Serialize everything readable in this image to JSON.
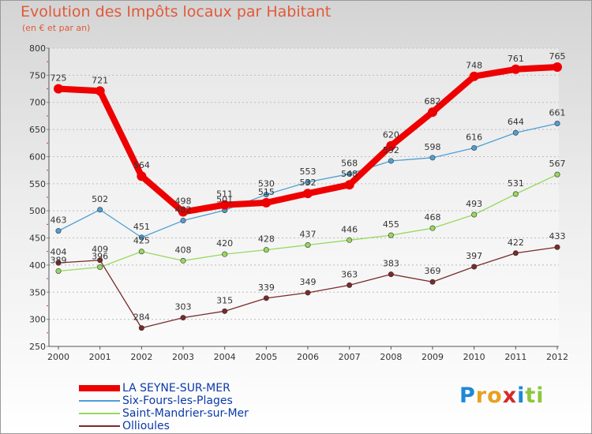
{
  "title": "Evolution des Impôts locaux par Habitant",
  "subtitle": "(en € et par an)",
  "logo": {
    "letters": [
      {
        "ch": "P",
        "color": "#1e88d8"
      },
      {
        "ch": "r",
        "color": "#e8a020"
      },
      {
        "ch": "o",
        "color": "#e8a020"
      },
      {
        "ch": "x",
        "color": "#d42a2a"
      },
      {
        "ch": "i",
        "color": "#1e88d8"
      },
      {
        "ch": "t",
        "color": "#8cc63f"
      },
      {
        "ch": "i",
        "color": "#8cc63f"
      }
    ]
  },
  "chart_data": {
    "type": "line",
    "x": [
      2000,
      2001,
      2002,
      2003,
      2004,
      2005,
      2006,
      2007,
      2008,
      2009,
      2010,
      2011,
      2012
    ],
    "ylim": [
      250,
      800
    ],
    "yticks": [
      250,
      300,
      350,
      400,
      450,
      500,
      550,
      600,
      650,
      700,
      750,
      800
    ],
    "grid": "horizontal",
    "legend_position": "bottom-left",
    "series": [
      {
        "name": "LA SEYNE-SUR-MER",
        "color": "#ee0000",
        "width": 8,
        "values": [
          725,
          721,
          564,
          498,
          511,
          515,
          532,
          548,
          620,
          682,
          748,
          761,
          765
        ]
      },
      {
        "name": "Six-Fours-les-Plages",
        "color": "#4f9fd4",
        "width": 1.3,
        "values": [
          463,
          502,
          451,
          482,
          501,
          530,
          553,
          568,
          592,
          598,
          616,
          644,
          661
        ]
      },
      {
        "name": "Saint-Mandrier-sur-Mer",
        "color": "#97d95f",
        "width": 1.3,
        "values": [
          389,
          396,
          425,
          408,
          420,
          428,
          437,
          446,
          455,
          468,
          493,
          531,
          567
        ]
      },
      {
        "name": "Ollioules",
        "color": "#7a2a2a",
        "width": 1.3,
        "values": [
          404,
          409,
          284,
          303,
          315,
          339,
          349,
          363,
          383,
          369,
          397,
          422,
          433
        ]
      }
    ]
  }
}
